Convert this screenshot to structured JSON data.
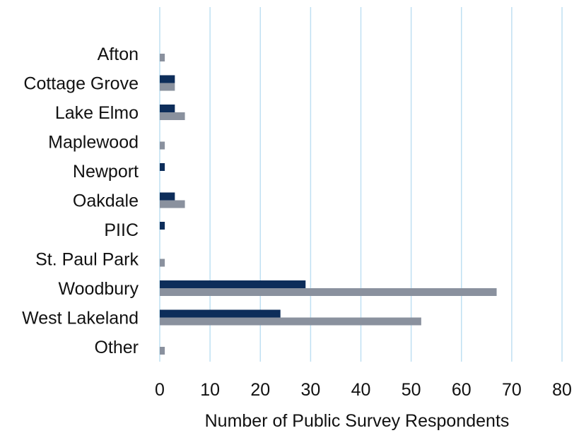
{
  "chart_data": {
    "type": "bar",
    "orientation": "horizontal",
    "categories": [
      "Afton",
      "Cottage Grove",
      "Lake Elmo",
      "Maplewood",
      "Newport",
      "Oakdale",
      "PIIC",
      "St. Paul Park",
      "Woodbury",
      "West Lakeland",
      "Other"
    ],
    "series": [
      {
        "values": [
          0,
          3,
          3,
          0,
          1,
          3,
          1,
          0,
          29,
          24,
          0
        ],
        "color": "#0d2d5a"
      },
      {
        "values": [
          1,
          3,
          5,
          1,
          0,
          5,
          0,
          1,
          67,
          52,
          1
        ],
        "color": "#8a919e"
      }
    ],
    "xticks": [
      "0",
      "10",
      "20",
      "30",
      "40",
      "50",
      "60",
      "70",
      "80"
    ],
    "xlim": [
      0,
      80
    ],
    "xlabel": "Number of Public Survey Respondents",
    "grid": "vertical",
    "grid_color": "#bfe0f2",
    "legend": "none"
  }
}
